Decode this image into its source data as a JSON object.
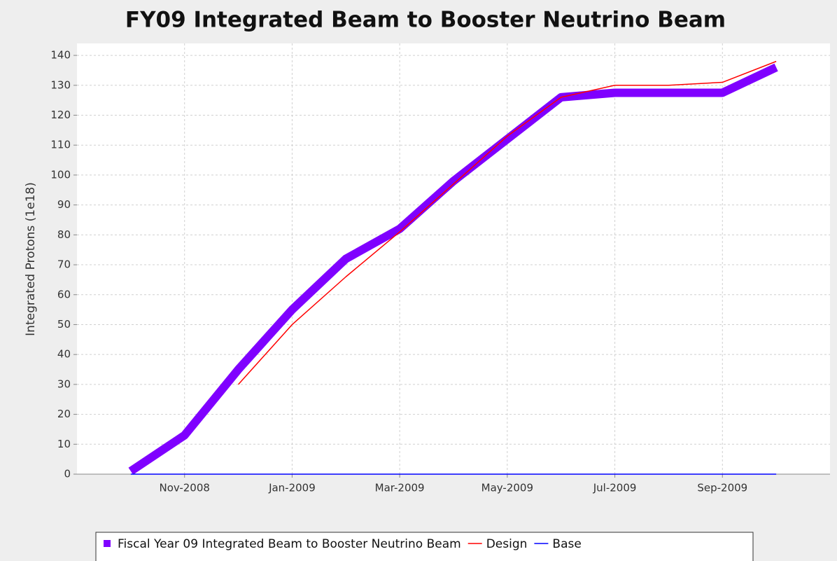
{
  "chart_data": {
    "type": "line",
    "title": "FY09 Integrated Beam to Booster Neutrino Beam",
    "y_label": "Integrated Protons (1e18)",
    "x": [
      "2008-10",
      "2008-11",
      "2008-12",
      "2009-01",
      "2009-02",
      "2009-03",
      "2009-04",
      "2009-05",
      "2009-06",
      "2009-07",
      "2009-08",
      "2009-09",
      "2009-10"
    ],
    "series": [
      {
        "name": "Fiscal Year 09 Integrated Beam to Booster Neutrino Beam",
        "color": "#7f00ff",
        "values": [
          1,
          13,
          35,
          55,
          72,
          82,
          98,
          112,
          126,
          127.5,
          127.5,
          127.5,
          136
        ]
      },
      {
        "name": "Design",
        "color": "#ff0000",
        "values": [
          null,
          null,
          30,
          50,
          66,
          81,
          97,
          113,
          126,
          130,
          130,
          131,
          138
        ]
      },
      {
        "name": "Base",
        "color": "#0000ff",
        "values": [
          0,
          0,
          0,
          0,
          0,
          0,
          0,
          0,
          0,
          0,
          0,
          0,
          0
        ]
      }
    ],
    "xlim": [
      "2008-09",
      "2009-11"
    ],
    "xticks": [
      {
        "value": "2008-11",
        "label": "Nov-2008"
      },
      {
        "value": "2009-01",
        "label": "Jan-2009"
      },
      {
        "value": "2009-03",
        "label": "Mar-2009"
      },
      {
        "value": "2009-05",
        "label": "May-2009"
      },
      {
        "value": "2009-07",
        "label": "Jul-2009"
      },
      {
        "value": "2009-09",
        "label": "Sep-2009"
      }
    ],
    "ylim": [
      0,
      144
    ],
    "yticks": [
      0,
      10,
      20,
      30,
      40,
      50,
      60,
      70,
      80,
      90,
      100,
      110,
      120,
      130,
      140
    ],
    "grid": true,
    "legend": "bottom"
  }
}
